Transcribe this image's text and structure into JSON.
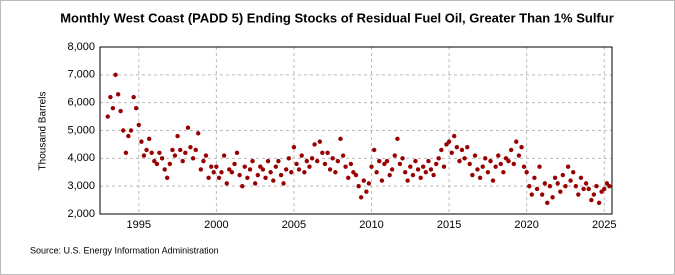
{
  "chart_data": {
    "type": "scatter",
    "title": "Monthly West Coast (PADD 5) Ending Stocks of Residual Fuel Oil, Greater Than 1% Sulfur",
    "y_label": "Thousand Barrels",
    "source": "Source: U.S. Energy Information Administration",
    "color": "#990000",
    "grid": true,
    "xlim": [
      1992.5,
      2025.5
    ],
    "xticks": [
      1995,
      2000,
      2005,
      2010,
      2015,
      2020,
      2025
    ],
    "ylim": [
      2000,
      8000
    ],
    "yticks": [
      {
        "value": 2000,
        "label": "2,000"
      },
      {
        "value": 3000,
        "label": "3,000"
      },
      {
        "value": 4000,
        "label": "4,000"
      },
      {
        "value": 5000,
        "label": "5,000"
      },
      {
        "value": 6000,
        "label": "6,000"
      },
      {
        "value": 7000,
        "label": "7,000"
      },
      {
        "value": 8000,
        "label": "8,000"
      }
    ],
    "x": [
      1993,
      1993.17,
      1993.33,
      1993.5,
      1993.67,
      1993.83,
      1994,
      1994.17,
      1994.33,
      1994.5,
      1994.67,
      1994.83,
      1995,
      1995.17,
      1995.33,
      1995.5,
      1995.67,
      1995.83,
      1996,
      1996.17,
      1996.33,
      1996.5,
      1996.67,
      1996.83,
      1997,
      1997.17,
      1997.33,
      1997.5,
      1997.67,
      1997.83,
      1998,
      1998.17,
      1998.33,
      1998.5,
      1998.67,
      1998.83,
      1999,
      1999.17,
      1999.33,
      1999.5,
      1999.67,
      1999.83,
      2000,
      2000.17,
      2000.33,
      2000.5,
      2000.67,
      2000.83,
      2001,
      2001.17,
      2001.33,
      2001.5,
      2001.67,
      2001.83,
      2002,
      2002.17,
      2002.33,
      2002.5,
      2002.67,
      2002.83,
      2003,
      2003.17,
      2003.33,
      2003.5,
      2003.67,
      2003.83,
      2004,
      2004.17,
      2004.33,
      2004.5,
      2004.67,
      2004.83,
      2005,
      2005.17,
      2005.33,
      2005.5,
      2005.67,
      2005.83,
      2006,
      2006.17,
      2006.33,
      2006.5,
      2006.67,
      2006.83,
      2007,
      2007.17,
      2007.33,
      2007.5,
      2007.67,
      2007.83,
      2008,
      2008.17,
      2008.33,
      2008.5,
      2008.67,
      2008.83,
      2009,
      2009.17,
      2009.33,
      2009.5,
      2009.67,
      2009.83,
      2010,
      2010.17,
      2010.33,
      2010.5,
      2010.67,
      2010.83,
      2011,
      2011.17,
      2011.33,
      2011.5,
      2011.67,
      2011.83,
      2012,
      2012.17,
      2012.33,
      2012.5,
      2012.67,
      2012.83,
      2013,
      2013.17,
      2013.33,
      2013.5,
      2013.67,
      2013.83,
      2014,
      2014.17,
      2014.33,
      2014.5,
      2014.67,
      2014.83,
      2015,
      2015.17,
      2015.33,
      2015.5,
      2015.67,
      2015.83,
      2016,
      2016.17,
      2016.33,
      2016.5,
      2016.67,
      2016.83,
      2017,
      2017.17,
      2017.33,
      2017.5,
      2017.67,
      2017.83,
      2018,
      2018.17,
      2018.33,
      2018.5,
      2018.67,
      2018.83,
      2019,
      2019.17,
      2019.33,
      2019.5,
      2019.67,
      2019.83,
      2020,
      2020.17,
      2020.33,
      2020.5,
      2020.67,
      2020.83,
      2021,
      2021.17,
      2021.33,
      2021.5,
      2021.67,
      2021.83,
      2022,
      2022.17,
      2022.33,
      2022.5,
      2022.67,
      2022.83,
      2023,
      2023.17,
      2023.33,
      2023.5,
      2023.67,
      2023.83,
      2024,
      2024.17,
      2024.33,
      2024.5,
      2024.67,
      2024.83,
      2025,
      2025.17,
      2025.33
    ],
    "values": [
      5500,
      6200,
      5800,
      7000,
      6300,
      5700,
      5000,
      4200,
      4800,
      5000,
      6200,
      5800,
      5200,
      4600,
      4100,
      4300,
      4700,
      4200,
      3900,
      3800,
      4200,
      4000,
      3600,
      3300,
      3800,
      4300,
      4100,
      4800,
      4300,
      3900,
      4200,
      5100,
      4400,
      4000,
      4300,
      4900,
      3600,
      3900,
      4100,
      3300,
      3700,
      3500,
      3700,
      3300,
      3500,
      4100,
      3100,
      3600,
      3500,
      3800,
      4200,
      3400,
      3000,
      3700,
      3300,
      3600,
      3900,
      3100,
      3400,
      3700,
      3600,
      3300,
      3900,
      3500,
      3200,
      3700,
      3900,
      3400,
      3100,
      3600,
      4000,
      3500,
      4400,
      3800,
      3600,
      4100,
      3500,
      3900,
      3700,
      4000,
      4500,
      3900,
      4600,
      4200,
      3800,
      4200,
      3600,
      4000,
      3500,
      3900,
      4700,
      4100,
      3700,
      3300,
      3800,
      3500,
      3400,
      3000,
      2600,
      3200,
      2800,
      3100,
      3700,
      4300,
      3500,
      3900,
      3200,
      3800,
      3900,
      3400,
      3600,
      4100,
      4700,
      3800,
      4000,
      3500,
      3200,
      3700,
      3400,
      3900,
      3600,
      3300,
      3700,
      3500,
      3900,
      3600,
      3400,
      3800,
      4000,
      4300,
      3700,
      4500,
      4600,
      4200,
      4800,
      4400,
      3900,
      4300,
      4000,
      4400,
      3800,
      3400,
      4100,
      3600,
      3300,
      3700,
      4000,
      3500,
      3900,
      3200,
      3700,
      4100,
      3800,
      3500,
      4000,
      3900,
      4300,
      3800,
      4600,
      4100,
      4400,
      3700,
      3500,
      3000,
      2700,
      3300,
      2900,
      3700,
      2700,
      3100,
      2400,
      3000,
      2600,
      3300,
      3100,
      2800,
      3400,
      3000,
      3700,
      3200,
      3500,
      3000,
      2700,
      3300,
      2900,
      3100,
      2900,
      2500,
      2700,
      3000,
      2400,
      2800,
      2900,
      3100,
      3000
    ]
  }
}
